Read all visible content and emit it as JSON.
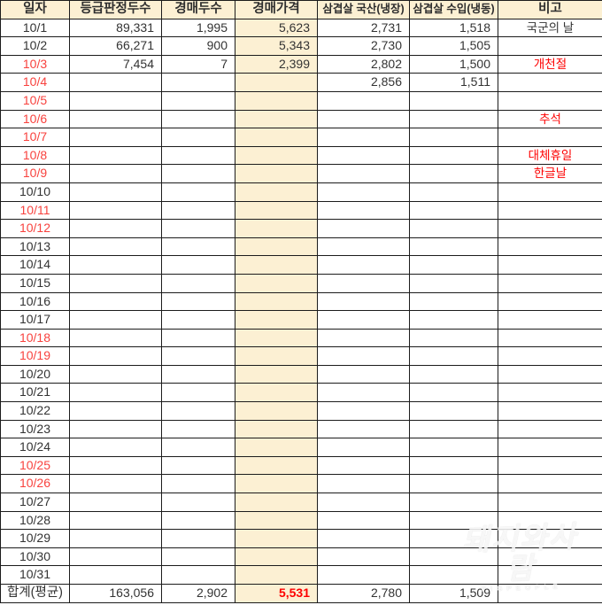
{
  "table": {
    "headers": [
      "일자",
      "등급판정두수",
      "경매두수",
      "경매가격",
      "삼겹살 국산(냉장)",
      "삼겹살 수입(냉동)",
      "비고"
    ],
    "rows": [
      {
        "date": "10/1",
        "date_red": false,
        "values": [
          "89,331",
          "1,995",
          "5,623",
          "2,731",
          "1,518"
        ],
        "remark": "국군의 날",
        "remark_red": false
      },
      {
        "date": "10/2",
        "date_red": false,
        "values": [
          "66,271",
          "900",
          "5,343",
          "2,730",
          "1,505"
        ],
        "remark": "",
        "remark_red": false
      },
      {
        "date": "10/3",
        "date_red": true,
        "values": [
          "7,454",
          "7",
          "2,399",
          "2,802",
          "1,500"
        ],
        "remark": "개천절",
        "remark_red": true
      },
      {
        "date": "10/4",
        "date_red": true,
        "values": [
          "",
          "",
          "",
          "2,856",
          "1,511"
        ],
        "remark": "",
        "remark_red": false
      },
      {
        "date": "10/5",
        "date_red": true,
        "values": [
          "",
          "",
          "",
          "",
          ""
        ],
        "remark": "",
        "remark_red": false
      },
      {
        "date": "10/6",
        "date_red": true,
        "values": [
          "",
          "",
          "",
          "",
          ""
        ],
        "remark": "추석",
        "remark_red": true
      },
      {
        "date": "10/7",
        "date_red": true,
        "values": [
          "",
          "",
          "",
          "",
          ""
        ],
        "remark": "",
        "remark_red": false
      },
      {
        "date": "10/8",
        "date_red": true,
        "values": [
          "",
          "",
          "",
          "",
          ""
        ],
        "remark": "대체휴일",
        "remark_red": true
      },
      {
        "date": "10/9",
        "date_red": true,
        "values": [
          "",
          "",
          "",
          "",
          ""
        ],
        "remark": "한글날",
        "remark_red": true
      },
      {
        "date": "10/10",
        "date_red": false,
        "values": [
          "",
          "",
          "",
          "",
          ""
        ],
        "remark": "",
        "remark_red": false
      },
      {
        "date": "10/11",
        "date_red": true,
        "values": [
          "",
          "",
          "",
          "",
          ""
        ],
        "remark": "",
        "remark_red": false
      },
      {
        "date": "10/12",
        "date_red": true,
        "values": [
          "",
          "",
          "",
          "",
          ""
        ],
        "remark": "",
        "remark_red": false
      },
      {
        "date": "10/13",
        "date_red": false,
        "values": [
          "",
          "",
          "",
          "",
          ""
        ],
        "remark": "",
        "remark_red": false
      },
      {
        "date": "10/14",
        "date_red": false,
        "values": [
          "",
          "",
          "",
          "",
          ""
        ],
        "remark": "",
        "remark_red": false
      },
      {
        "date": "10/15",
        "date_red": false,
        "values": [
          "",
          "",
          "",
          "",
          ""
        ],
        "remark": "",
        "remark_red": false
      },
      {
        "date": "10/16",
        "date_red": false,
        "values": [
          "",
          "",
          "",
          "",
          ""
        ],
        "remark": "",
        "remark_red": false
      },
      {
        "date": "10/17",
        "date_red": false,
        "values": [
          "",
          "",
          "",
          "",
          ""
        ],
        "remark": "",
        "remark_red": false
      },
      {
        "date": "10/18",
        "date_red": true,
        "values": [
          "",
          "",
          "",
          "",
          ""
        ],
        "remark": "",
        "remark_red": false
      },
      {
        "date": "10/19",
        "date_red": true,
        "values": [
          "",
          "",
          "",
          "",
          ""
        ],
        "remark": "",
        "remark_red": false
      },
      {
        "date": "10/20",
        "date_red": false,
        "values": [
          "",
          "",
          "",
          "",
          ""
        ],
        "remark": "",
        "remark_red": false
      },
      {
        "date": "10/21",
        "date_red": false,
        "values": [
          "",
          "",
          "",
          "",
          ""
        ],
        "remark": "",
        "remark_red": false
      },
      {
        "date": "10/22",
        "date_red": false,
        "values": [
          "",
          "",
          "",
          "",
          ""
        ],
        "remark": "",
        "remark_red": false
      },
      {
        "date": "10/23",
        "date_red": false,
        "values": [
          "",
          "",
          "",
          "",
          ""
        ],
        "remark": "",
        "remark_red": false
      },
      {
        "date": "10/24",
        "date_red": false,
        "values": [
          "",
          "",
          "",
          "",
          ""
        ],
        "remark": "",
        "remark_red": false
      },
      {
        "date": "10/25",
        "date_red": true,
        "values": [
          "",
          "",
          "",
          "",
          ""
        ],
        "remark": "",
        "remark_red": false
      },
      {
        "date": "10/26",
        "date_red": true,
        "values": [
          "",
          "",
          "",
          "",
          ""
        ],
        "remark": "",
        "remark_red": false
      },
      {
        "date": "10/27",
        "date_red": false,
        "values": [
          "",
          "",
          "",
          "",
          ""
        ],
        "remark": "",
        "remark_red": false
      },
      {
        "date": "10/28",
        "date_red": false,
        "values": [
          "",
          "",
          "",
          "",
          ""
        ],
        "remark": "",
        "remark_red": false
      },
      {
        "date": "10/29",
        "date_red": false,
        "values": [
          "",
          "",
          "",
          "",
          ""
        ],
        "remark": "",
        "remark_red": false
      },
      {
        "date": "10/30",
        "date_red": false,
        "values": [
          "",
          "",
          "",
          "",
          ""
        ],
        "remark": "",
        "remark_red": false
      },
      {
        "date": "10/31",
        "date_red": false,
        "values": [
          "",
          "",
          "",
          "",
          ""
        ],
        "remark": "",
        "remark_red": false
      }
    ],
    "total": {
      "label": "합계(평균)",
      "values": [
        "163,056",
        "2,902",
        "5,531",
        "2,780",
        "1,509"
      ],
      "remark": ""
    }
  },
  "colors": {
    "highlight": "#fcf0d3",
    "date_red": "#f8423e",
    "remark_red": "#fe0000",
    "text": "#333333",
    "border": "#1c1c1c"
  },
  "watermark": {
    "text": "돼지와사람",
    "subtext": "PIGPEOPLE"
  }
}
